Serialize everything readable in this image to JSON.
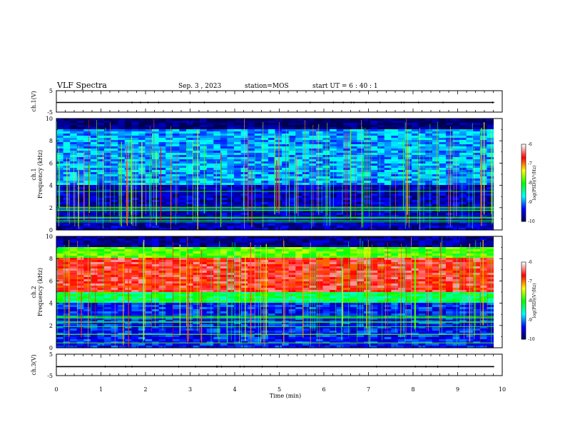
{
  "header": {
    "title": "VLF Spectra",
    "date": "Sep. 3  , 2023",
    "station": "station=MOS",
    "start": "start  UT  =   6  : 40 : 1"
  },
  "colors": {
    "background": "#ffffff",
    "axis": "#000000",
    "colormap": [
      "#000050",
      "#0000ff",
      "#00ffff",
      "#00ff00",
      "#ffff00",
      "#ff0000",
      "#ffffff"
    ]
  },
  "chart_data": [
    {
      "type": "line",
      "panel": "ch1-waveform",
      "ylabel": "ch.1(V)",
      "ylim": [
        -5,
        5
      ],
      "yticks": [
        "5",
        "-5"
      ],
      "x": [
        0,
        9.82
      ],
      "values": [
        -0.5,
        -0.5
      ]
    },
    {
      "type": "heatmap",
      "panel": "ch1-spectrogram",
      "ylabel_channel": "ch.1",
      "ylabel": "Frequency (kHz)",
      "ylim": [
        0,
        10
      ],
      "yticks": [
        "0",
        "2",
        "4",
        "6",
        "8",
        "10"
      ],
      "xlim": [
        0,
        9.82
      ],
      "colorbar": {
        "label": "log(PSD)(V²/Hz)",
        "range": [
          -10,
          -6
        ],
        "ticks": [
          "-6",
          "-7",
          "-8",
          "-9",
          "-10"
        ]
      },
      "description_levels": {
        "band_0_4kHz": -9.6,
        "band_4_9kHz": -8.9,
        "above_9kHz": -9.9,
        "spikes": "frequent vertical impulsive emissions reaching -6 to -7"
      }
    },
    {
      "type": "heatmap",
      "panel": "ch2-spectrogram",
      "ylabel_channel": "ch.2",
      "ylabel": "Frequency (kHz)",
      "ylim": [
        0,
        10
      ],
      "yticks": [
        "0",
        "2",
        "4",
        "6",
        "8",
        "10"
      ],
      "xlim": [
        0,
        9.82
      ],
      "colorbar": {
        "label": "log(PSD)(V²/Hz)",
        "range": [
          -10,
          -6
        ],
        "ticks": [
          "-6",
          "-7",
          "-8",
          "-9",
          "-10"
        ]
      },
      "description_levels": {
        "band_0_4kHz": -9.3,
        "band_4_5kHz": -8.2,
        "band_5_8kHz": -6.6,
        "band_8_9kHz": -7.8,
        "above_9kHz": -9.7
      }
    },
    {
      "type": "line",
      "panel": "ch3-waveform",
      "ylabel": "ch.3(V)",
      "ylim": [
        -5,
        5
      ],
      "yticks": [
        "5",
        "-5"
      ],
      "x": [
        0,
        9.82
      ],
      "values": [
        -0.8,
        -0.8
      ]
    }
  ],
  "xaxis": {
    "label": "Time (min)",
    "range": [
      0,
      10
    ],
    "ticks": [
      "0",
      "1",
      "2",
      "3",
      "4",
      "5",
      "6",
      "7",
      "8",
      "9",
      "10"
    ]
  }
}
